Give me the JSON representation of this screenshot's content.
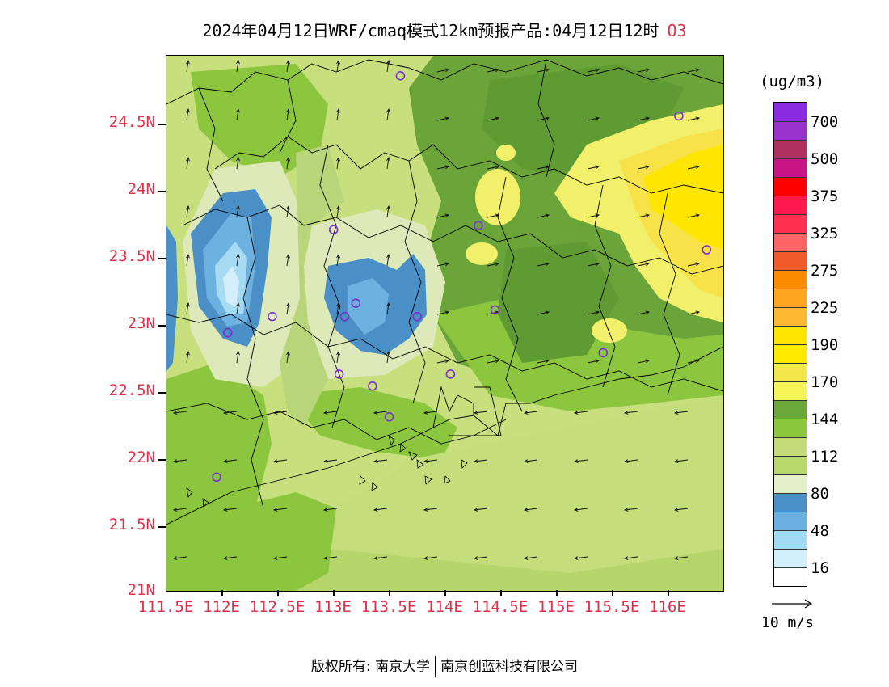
{
  "title": {
    "text": "2024年04月12日WRF/cmaq模式12km预报产品:04月12日12时",
    "species": "O3"
  },
  "map": {
    "lon_ticks": [
      "111.5E",
      "112E",
      "112.5E",
      "113E",
      "113.5E",
      "114E",
      "114.5E",
      "115E",
      "115.5E",
      "116E"
    ],
    "lat_ticks": [
      "24.5N",
      "24N",
      "23.5N",
      "23N",
      "22.5N",
      "22N",
      "21.5N",
      "21N"
    ],
    "lon_range": [
      111.5,
      116.5
    ],
    "lat_range": [
      21.0,
      25.0
    ],
    "stations": [
      [
        113.6,
        24.85
      ],
      [
        116.1,
        24.55
      ],
      [
        114.3,
        23.73
      ],
      [
        113.0,
        23.7
      ],
      [
        116.35,
        23.55
      ],
      [
        112.45,
        23.05
      ],
      [
        113.2,
        23.15
      ],
      [
        113.1,
        23.05
      ],
      [
        113.75,
        23.05
      ],
      [
        114.45,
        23.1
      ],
      [
        112.05,
        22.93
      ],
      [
        115.42,
        22.78
      ],
      [
        113.05,
        22.62
      ],
      [
        114.05,
        22.62
      ],
      [
        113.35,
        22.53
      ],
      [
        113.5,
        22.3
      ],
      [
        111.95,
        21.85
      ]
    ]
  },
  "colorbar": {
    "unit": "(ug/m3)",
    "colors": [
      "#8a2be2",
      "#9932cc",
      "#b03060",
      "#c71585",
      "#ff0000",
      "#ff1a4b",
      "#ff3050",
      "#ff6464",
      "#f05a28",
      "#ff8c00",
      "#ffa520",
      "#ffb833",
      "#ffe600",
      "#ffeb00",
      "#f5e84a",
      "#f5f55a",
      "#6aa83a",
      "#8cc83c",
      "#c3dc78",
      "#b9d86a",
      "#e6f0c8",
      "#4a90c8",
      "#6ab0e0",
      "#a0daf5",
      "#d2f0fa",
      "#ffffff"
    ],
    "labels": [
      "700",
      "500",
      "375",
      "325",
      "275",
      "225",
      "190",
      "170",
      "144",
      "112",
      "80",
      "48",
      "16"
    ]
  },
  "wind_reference": {
    "label": "10  m/s"
  },
  "copyright": {
    "left": "版权所有: 南京大学",
    "right": "南京创蓝科技有限公司"
  }
}
